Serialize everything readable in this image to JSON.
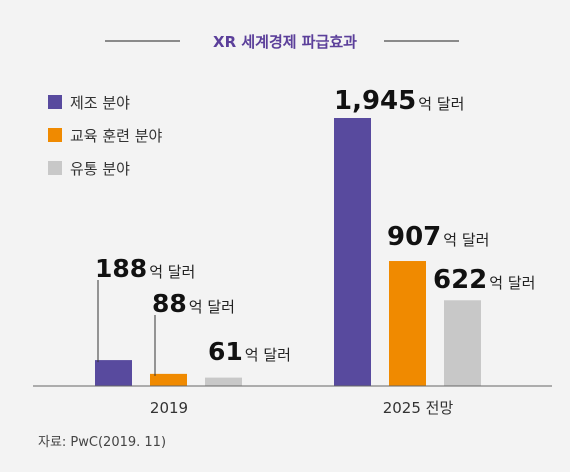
{
  "chart_data": {
    "type": "bar",
    "title": "XR 세계경제 파급효과",
    "categories": [
      "2019",
      "2025 전망"
    ],
    "series": [
      {
        "name": "제조 분야",
        "color": "#584a9e",
        "values": [
          188,
          1945
        ]
      },
      {
        "name": "교육 훈련 분야",
        "color": "#f08a00",
        "values": [
          88,
          907
        ]
      },
      {
        "name": "유통 분야",
        "color": "#c8c8c8",
        "values": [
          61,
          622
        ]
      }
    ],
    "unit_label": "억 달러",
    "value_labels": [
      [
        "188",
        "1,945"
      ],
      [
        "88",
        "907"
      ],
      [
        "61",
        "622"
      ]
    ],
    "legend_position": "top-left",
    "grid": false,
    "source": "자료: PwC(2019. 11)"
  }
}
